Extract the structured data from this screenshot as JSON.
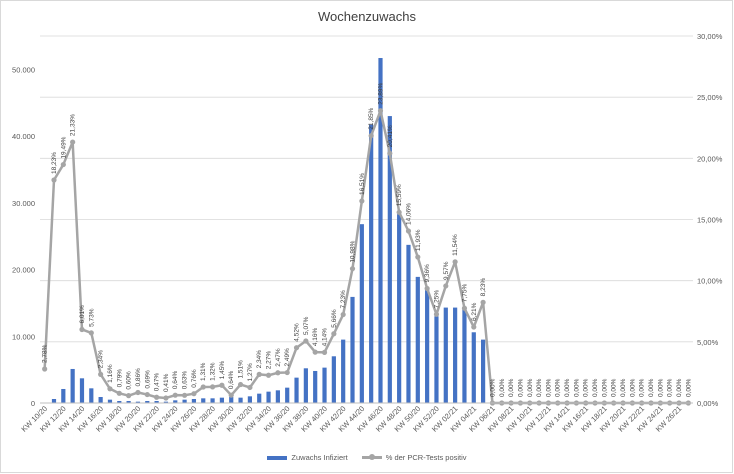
{
  "chart_data": {
    "type": "bar",
    "title": "Wochenzuwachs",
    "x": [
      "KW 10/20",
      "KW 11/20",
      "KW 12/20",
      "KW 13/20",
      "KW 14/20",
      "KW 15/20",
      "KW 16/20",
      "KW 17/20",
      "KW 18/20",
      "KW 19/20",
      "KW 20/20",
      "KW 21/20",
      "KW 22/20",
      "KW 23/20",
      "KW 24/20",
      "KW 25/20",
      "KW 26/20",
      "KW 27/20",
      "KW 28/20",
      "KW 29/20",
      "KW 30/20",
      "KW 31/20",
      "KW 32/20",
      "KW 33/20",
      "KW 34/20",
      "KW 35/20",
      "KW 36/20",
      "KW 37/20",
      "KW 38/20",
      "KW 39/20",
      "KW 40/20",
      "KW 41/20",
      "KW 42/20",
      "KW 43/20",
      "KW 44/20",
      "KW 45/20",
      "KW 46/20",
      "KW 47/20",
      "KW 48/20",
      "KW 49/20",
      "KW 50/20",
      "KW 51/20",
      "KW 52/20",
      "KW 53/20",
      "KW 01/21",
      "KW 02/21",
      "KW 03/21",
      "KW 04/21",
      "KW 05/21",
      "KW 06/21",
      "KW 07/21",
      "KW 08/21",
      "KW 09/21",
      "KW 10/21",
      "KW 11/21",
      "KW 12/21",
      "KW 13/21",
      "KW 14/21",
      "KW 15/21",
      "KW 16/21",
      "KW 17/21",
      "KW 18/21",
      "KW 19/21",
      "KW 20/21",
      "KW 21/21",
      "KW 22/21",
      "KW 23/21",
      "KW 24/21",
      "KW 25/21",
      "KW 26/21"
    ],
    "x_tick_labels": [
      "KW 10/20",
      "KW 12/20",
      "KW 14/20",
      "KW 16/20",
      "KW 18/20",
      "KW 20/20",
      "KW 22/20",
      "KW 24/20",
      "KW 26/20",
      "KW 28/20",
      "KW 30/20",
      "KW 32/20",
      "KW 34/20",
      "KW 36/20",
      "KW 38/20",
      "KW 40/20",
      "KW 42/20",
      "KW 44/20",
      "KW 46/20",
      "KW 48/20",
      "KW 50/20",
      "KW 52/20",
      "KW 02/21",
      "KW 04/21",
      "KW 06/21",
      "KW 08/21",
      "KW 10/21",
      "KW 12/21",
      "KW 14/21",
      "KW 16/21",
      "KW 18/21",
      "KW 20/21",
      "KW 22/21",
      "KW 24/21",
      "KW 26/21"
    ],
    "series": [
      {
        "name": "Zuwachs Infiziert",
        "type": "bar",
        "axis": "left",
        "color": "#4472c4",
        "values": [
          30,
          600,
          2100,
          5100,
          3700,
          2200,
          900,
          500,
          300,
          300,
          200,
          300,
          300,
          200,
          400,
          500,
          600,
          700,
          700,
          800,
          900,
          800,
          1000,
          1400,
          1700,
          1900,
          2300,
          3800,
          5200,
          4800,
          5300,
          7000,
          9500,
          15900,
          26800,
          41700,
          51700,
          43000,
          28300,
          23700,
          18900,
          17000,
          13000,
          14300,
          14300,
          14300,
          10600,
          9500,
          0,
          0,
          0,
          0,
          0,
          0,
          0,
          0,
          0,
          0,
          0,
          0,
          0,
          0,
          0,
          0,
          0,
          0,
          0,
          0,
          0,
          0
        ]
      },
      {
        "name": "% der PCR-Tests positiv",
        "type": "line",
        "axis": "right",
        "color": "#a5a5a5",
        "values": [
          2.78,
          18.23,
          19.49,
          21.33,
          6.01,
          5.73,
          2.34,
          1.16,
          0.79,
          0.6,
          0.86,
          0.69,
          0.47,
          0.41,
          0.64,
          0.63,
          0.76,
          1.31,
          1.32,
          1.45,
          0.64,
          1.51,
          1.27,
          2.34,
          2.27,
          2.47,
          2.49,
          4.52,
          5.07,
          4.16,
          4.14,
          5.66,
          7.23,
          10.98,
          16.51,
          21.85,
          23.89,
          20.41,
          15.59,
          14.06,
          11.93,
          9.36,
          7.25,
          9.57,
          11.54,
          7.75,
          6.21,
          8.23,
          0,
          0,
          0,
          0,
          0,
          0,
          0,
          0,
          0,
          0,
          0,
          0,
          0,
          0,
          0,
          0,
          0,
          0,
          0,
          0,
          0,
          0
        ],
        "labels": [
          "2,78%",
          "18,23%",
          "19,49%",
          "21,33%",
          "6,01%",
          "5,73%",
          "2,34%",
          "1,16%",
          "0,79%",
          "0,60%",
          "0,86%",
          "0,69%",
          "0,47%",
          "0,41%",
          "0,64%",
          "0,63%",
          "0,76%",
          "1,31%",
          "1,32%",
          "1,45%",
          "0,64%",
          "1,51%",
          "1,27%",
          "2,34%",
          "2,27%",
          "2,47%",
          "2,49%",
          "4,52%",
          "5,07%",
          "4,16%",
          "4,14%",
          "5,66%",
          "7,23%",
          "10,98%",
          "16,51%",
          "21,85%",
          "23,89%",
          "20,41%",
          "15,59%",
          "14,06%",
          "11,93%",
          "9,36%",
          "7,25%",
          "9,57%",
          "11,54%",
          "7,75%",
          "6,21%",
          "8,23%",
          "0,00%",
          "0,00%",
          "0,00%",
          "0,00%",
          "0,00%",
          "0,00%",
          "0,00%",
          "0,00%",
          "0,00%",
          "0,00%",
          "0,00%",
          "0,00%",
          "0,00%",
          "0,00%",
          "0,00%",
          "0,00%",
          "0,00%",
          "0,00%",
          "0,00%",
          "0,00%",
          "0,00%",
          "0,00%"
        ]
      }
    ],
    "y_left": {
      "ylim": [
        0,
        55000
      ],
      "ticks": [
        "0",
        "10.000",
        "20.000",
        "30.000",
        "40.000",
        "50.000"
      ],
      "tick_values": [
        0,
        10000,
        20000,
        30000,
        40000,
        50000
      ]
    },
    "y_right": {
      "ylim": [
        0,
        30
      ],
      "ticks": [
        "0,00%",
        "5,00%",
        "10,00%",
        "15,00%",
        "20,00%",
        "25,00%",
        "30,00%"
      ],
      "tick_values": [
        0,
        5,
        10,
        15,
        20,
        25,
        30
      ]
    },
    "grid": true,
    "legend_position": "bottom"
  }
}
